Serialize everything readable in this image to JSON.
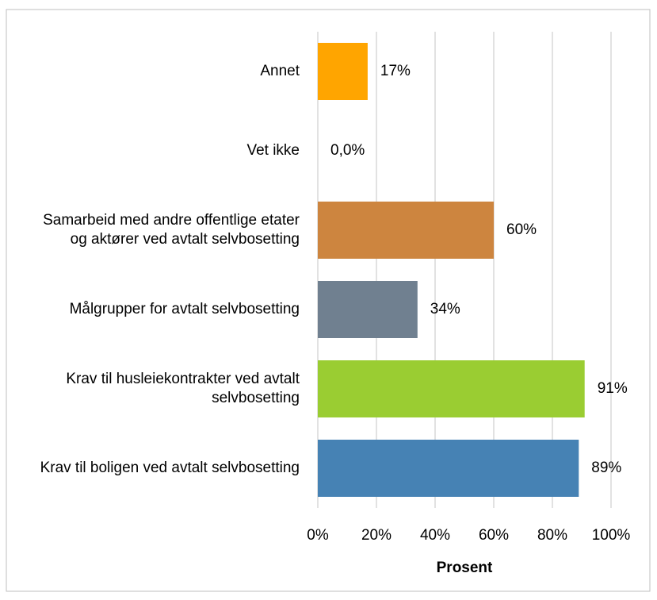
{
  "chart_data": {
    "type": "bar",
    "orientation": "horizontal",
    "categories": [
      "Annet",
      "Vet ikke",
      "Samarbeid med andre offentlige etater og aktører ved avtalt selvbosetting",
      "Målgrupper for avtalt selvbosetting",
      "Krav til husleiekontrakter ved avtalt selvbosetting",
      "Krav til boligen ved avtalt selvbosetting"
    ],
    "values": [
      17,
      0,
      60,
      34,
      91,
      89
    ],
    "value_labels": [
      "17%",
      "0,0%",
      "60%",
      "34%",
      "91%",
      "89%"
    ],
    "colors": [
      "#ffa500",
      "#4682b4",
      "#cd853f",
      "#708090",
      "#9acd32",
      "#4682b4"
    ],
    "xlim": [
      0,
      100
    ],
    "xticks": [
      {
        "value": 0,
        "label": "0%"
      },
      {
        "value": 20,
        "label": "20%"
      },
      {
        "value": 40,
        "label": "40%"
      },
      {
        "value": 60,
        "label": "60%"
      },
      {
        "value": 80,
        "label": "80%"
      },
      {
        "value": 100,
        "label": "100%"
      }
    ],
    "xlabel": "Prosent",
    "grid": true
  }
}
